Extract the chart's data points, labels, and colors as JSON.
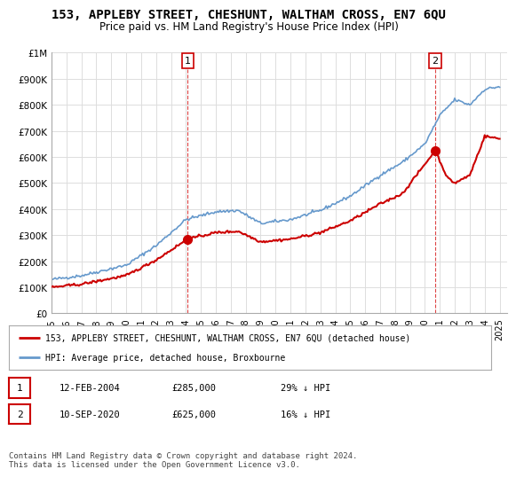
{
  "title": "153, APPLEBY STREET, CHESHUNT, WALTHAM CROSS, EN7 6QU",
  "subtitle": "Price paid vs. HM Land Registry's House Price Index (HPI)",
  "ylabel_ticks": [
    "£0",
    "£100K",
    "£200K",
    "£300K",
    "£400K",
    "£500K",
    "£600K",
    "£700K",
    "£800K",
    "£900K",
    "£1M"
  ],
  "ylim": [
    0,
    1000000
  ],
  "xlim_start": 1995.0,
  "xlim_end": 2025.5,
  "sale1_x": 2004.12,
  "sale1_y": 285000,
  "sale1_label": "1",
  "sale2_x": 2020.69,
  "sale2_y": 625000,
  "sale2_label": "2",
  "red_color": "#cc0000",
  "blue_color": "#6699cc",
  "annotation_vline_color": "#dd4444",
  "grid_color": "#dddddd",
  "background_color": "#ffffff",
  "legend_line1": "153, APPLEBY STREET, CHESHUNT, WALTHAM CROSS, EN7 6QU (detached house)",
  "legend_line2": "HPI: Average price, detached house, Broxbourne",
  "table_row1": [
    "1",
    "12-FEB-2004",
    "£285,000",
    "29% ↓ HPI"
  ],
  "table_row2": [
    "2",
    "10-SEP-2020",
    "£625,000",
    "16% ↓ HPI"
  ],
  "footer": "Contains HM Land Registry data © Crown copyright and database right 2024.\nThis data is licensed under the Open Government Licence v3.0.",
  "x_ticks": [
    1995,
    1996,
    1997,
    1998,
    1999,
    2000,
    2001,
    2002,
    2003,
    2004,
    2005,
    2006,
    2007,
    2008,
    2009,
    2010,
    2011,
    2012,
    2013,
    2014,
    2015,
    2016,
    2017,
    2018,
    2019,
    2020,
    2021,
    2022,
    2023,
    2024,
    2025
  ]
}
